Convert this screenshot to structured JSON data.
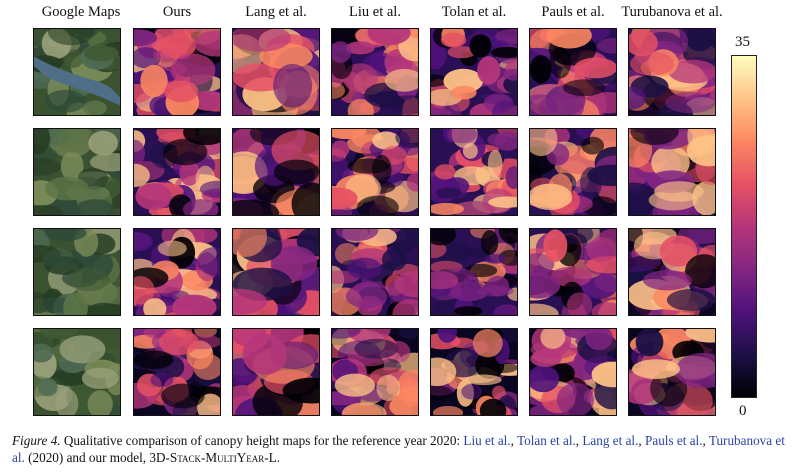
{
  "columns": [
    "Google Maps",
    "Ours",
    "Lang et al.",
    "Liu et al.",
    "Tolan et al.",
    "Pauls et al.",
    "Turubanova et al."
  ],
  "rows": 4,
  "colorbar": {
    "max": "35",
    "min": "0",
    "colormap": "magma"
  },
  "caption": {
    "figure_label": "Figure 4.",
    "text_1": " Qualitative comparison of canopy height maps for the reference year 2020: ",
    "link_liu": "Liu et al.",
    "sep_1": ", ",
    "link_tolan": "Tolan et al.",
    "sep_2": ", ",
    "link_lang": "Lang et al.",
    "sep_3": ", ",
    "link_pauls": "Pauls et al.",
    "sep_4": ", ",
    "link_turubanova": "Turubanova et al.",
    "text_2": " (2020) and our model, ",
    "model_name": "3D-Stack-MultiYear-L",
    "text_3": "."
  }
}
